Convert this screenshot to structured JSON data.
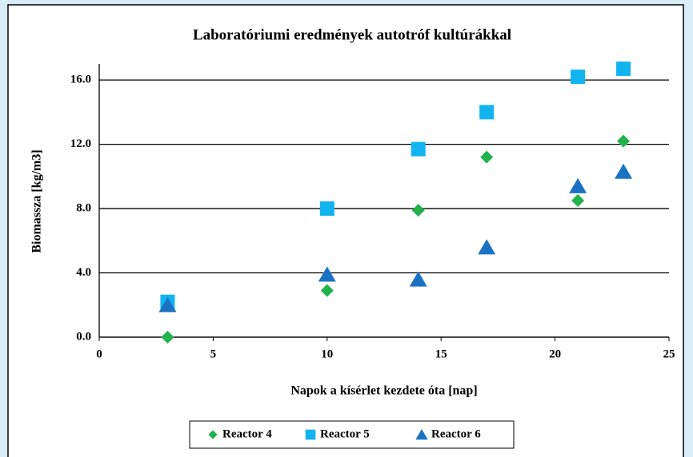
{
  "chart_data": {
    "type": "scatter",
    "title": "Laboratóriumi eredmények autotróf kultúrákkal",
    "xlabel": "Napok a kísérlet kezdete óta [nap]",
    "ylabel": "Biomassza [kg/m3]",
    "x": [
      3,
      10,
      14,
      17,
      21,
      23
    ],
    "series": [
      {
        "name": "Reactor 4",
        "color": "#22b24c",
        "marker": "diamond",
        "values": [
          0,
          2.9,
          7.9,
          11.2,
          8.5,
          12.2
        ]
      },
      {
        "name": "Reactor 5",
        "color": "#12b4f0",
        "marker": "square",
        "values": [
          2.2,
          8.0,
          11.7,
          14.0,
          16.2,
          16.7
        ]
      },
      {
        "name": "Reactor 6",
        "color": "#1a73c2",
        "marker": "triangle",
        "values": [
          2.0,
          3.9,
          3.6,
          5.6,
          9.4,
          10.3
        ]
      }
    ],
    "xlim": [
      0,
      25
    ],
    "xticks": [
      0,
      5,
      10,
      15,
      20,
      25
    ],
    "ylim": [
      0,
      17
    ],
    "yticks": [
      {
        "value": 0,
        "label": "0.0"
      },
      {
        "value": 4,
        "label": "4.0"
      },
      {
        "value": 8,
        "label": "8.0"
      },
      {
        "value": 12,
        "label": "12.0"
      },
      {
        "value": 16,
        "label": "16.0"
      }
    ],
    "grid": true,
    "legend": "bottom"
  }
}
